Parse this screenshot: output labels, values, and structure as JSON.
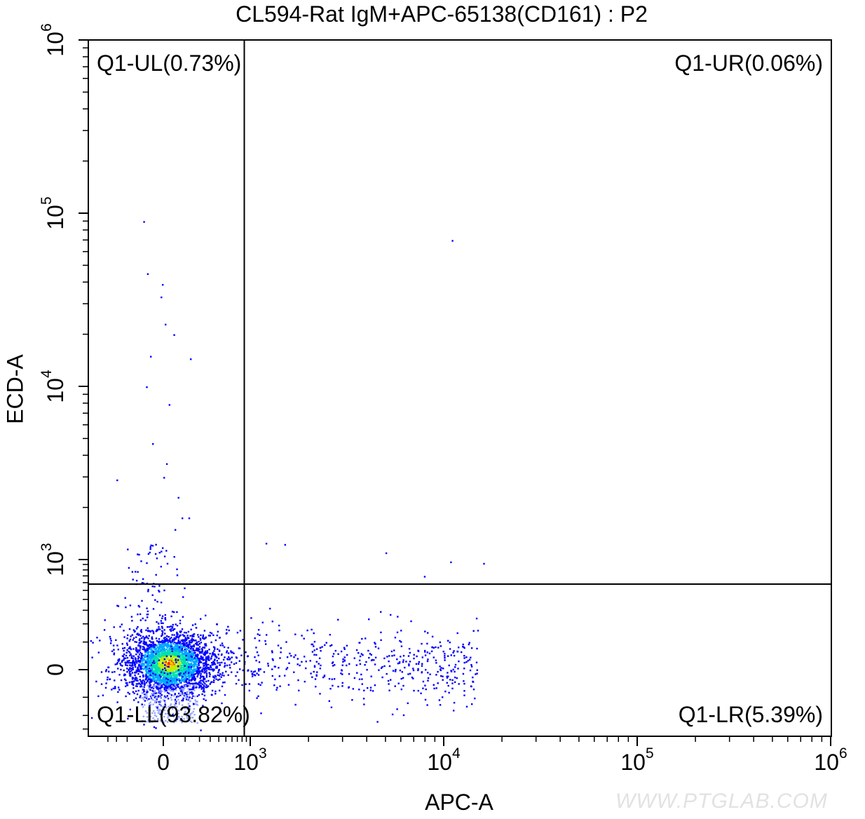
{
  "chart_data": {
    "type": "scatter",
    "title": "CL594-Rat IgM+APC-65138(CD161) : P2",
    "xlabel": "APC-A",
    "ylabel": "ECD-A",
    "x_scale": "biexponential",
    "y_scale": "biexponential",
    "x_ticks": [
      {
        "value": 0,
        "label": "0"
      },
      {
        "value": 1000,
        "label": "10",
        "exp": "3"
      },
      {
        "value": 10000,
        "label": "10",
        "exp": "4"
      },
      {
        "value": 100000,
        "label": "10",
        "exp": "5"
      },
      {
        "value": 1000000,
        "label": "10",
        "exp": "6"
      }
    ],
    "y_ticks": [
      {
        "value": 0,
        "label": "0"
      },
      {
        "value": 1000,
        "label": "10",
        "exp": "3"
      },
      {
        "value": 10000,
        "label": "10",
        "exp": "4"
      },
      {
        "value": 100000,
        "label": "10",
        "exp": "5"
      },
      {
        "value": 1000000,
        "label": "10",
        "exp": "6"
      }
    ],
    "gates": {
      "x_threshold": 850,
      "y_threshold": 580
    },
    "quadrants": [
      {
        "name": "Q1-UL",
        "percent": 0.73,
        "label": "Q1-UL(0.73%)",
        "position": "top-left"
      },
      {
        "name": "Q1-UR",
        "percent": 0.06,
        "label": "Q1-UR(0.06%)",
        "position": "top-right"
      },
      {
        "name": "Q1-LL",
        "percent": 93.82,
        "label": "Q1-LL(93.82%)",
        "position": "bottom-left"
      },
      {
        "name": "Q1-LR",
        "percent": 5.39,
        "label": "Q1-LR(5.39%)",
        "position": "bottom-right"
      }
    ],
    "populations": [
      {
        "name": "negative cluster",
        "center": [
          20,
          20
        ],
        "count": 93.82
      },
      {
        "name": "APC-positive tail",
        "x_range": [
          1000,
          15000
        ],
        "y_center": 0,
        "count": 5.39
      }
    ],
    "outlier_points": [
      [
        -90,
        90000
      ],
      [
        -70,
        45000
      ],
      [
        -5,
        39000
      ],
      [
        -10,
        33000
      ],
      [
        5,
        23000
      ],
      [
        40,
        20000
      ],
      [
        130,
        14500
      ],
      [
        -55,
        15000
      ],
      [
        -75,
        10000
      ],
      [
        20,
        7900
      ],
      [
        -45,
        4700
      ],
      [
        10,
        3600
      ],
      [
        -300,
        2900
      ],
      [
        0,
        3000
      ],
      [
        60,
        2300
      ],
      [
        80,
        1750
      ],
      [
        120,
        1750
      ],
      [
        45,
        1500
      ],
      [
        1200,
        1250
      ],
      [
        1500,
        1230
      ],
      [
        5000,
        1100
      ],
      [
        10800,
        960
      ],
      [
        16000,
        930
      ],
      [
        11000,
        70000
      ],
      [
        7900,
        700
      ]
    ],
    "colors": [
      "#0000ff",
      "#00a8ff",
      "#00e0b0",
      "#b8f000",
      "#ffd000",
      "#ff2000"
    ]
  },
  "watermark": "WWW.PTGLAB.COM"
}
